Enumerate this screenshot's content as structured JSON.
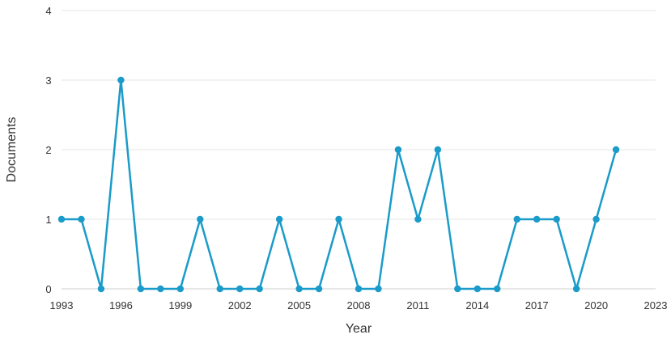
{
  "chart_data": {
    "type": "line",
    "title": "",
    "xlabel": "Year",
    "ylabel": "Documents",
    "xlim": [
      1993,
      2023
    ],
    "ylim": [
      0,
      4
    ],
    "x_ticks": [
      1993,
      1996,
      1999,
      2002,
      2005,
      2008,
      2011,
      2014,
      2017,
      2020,
      2023
    ],
    "y_ticks": [
      0,
      1,
      2,
      3,
      4
    ],
    "grid": "horizontal",
    "legend": "none",
    "series": [
      {
        "color": "#1a9bc9",
        "x": [
          1993,
          1994,
          1995,
          1996,
          1997,
          1998,
          1999,
          2000,
          2001,
          2002,
          2003,
          2004,
          2005,
          2006,
          2007,
          2008,
          2009,
          2010,
          2011,
          2012,
          2013,
          2014,
          2015,
          2016,
          2017,
          2018,
          2019,
          2020,
          2021
        ],
        "values": [
          1,
          1,
          0,
          3,
          0,
          0,
          0,
          1,
          0,
          0,
          0,
          1,
          0,
          0,
          1,
          0,
          0,
          2,
          1,
          2,
          0,
          0,
          0,
          1,
          1,
          1,
          0,
          1,
          2
        ]
      }
    ]
  }
}
